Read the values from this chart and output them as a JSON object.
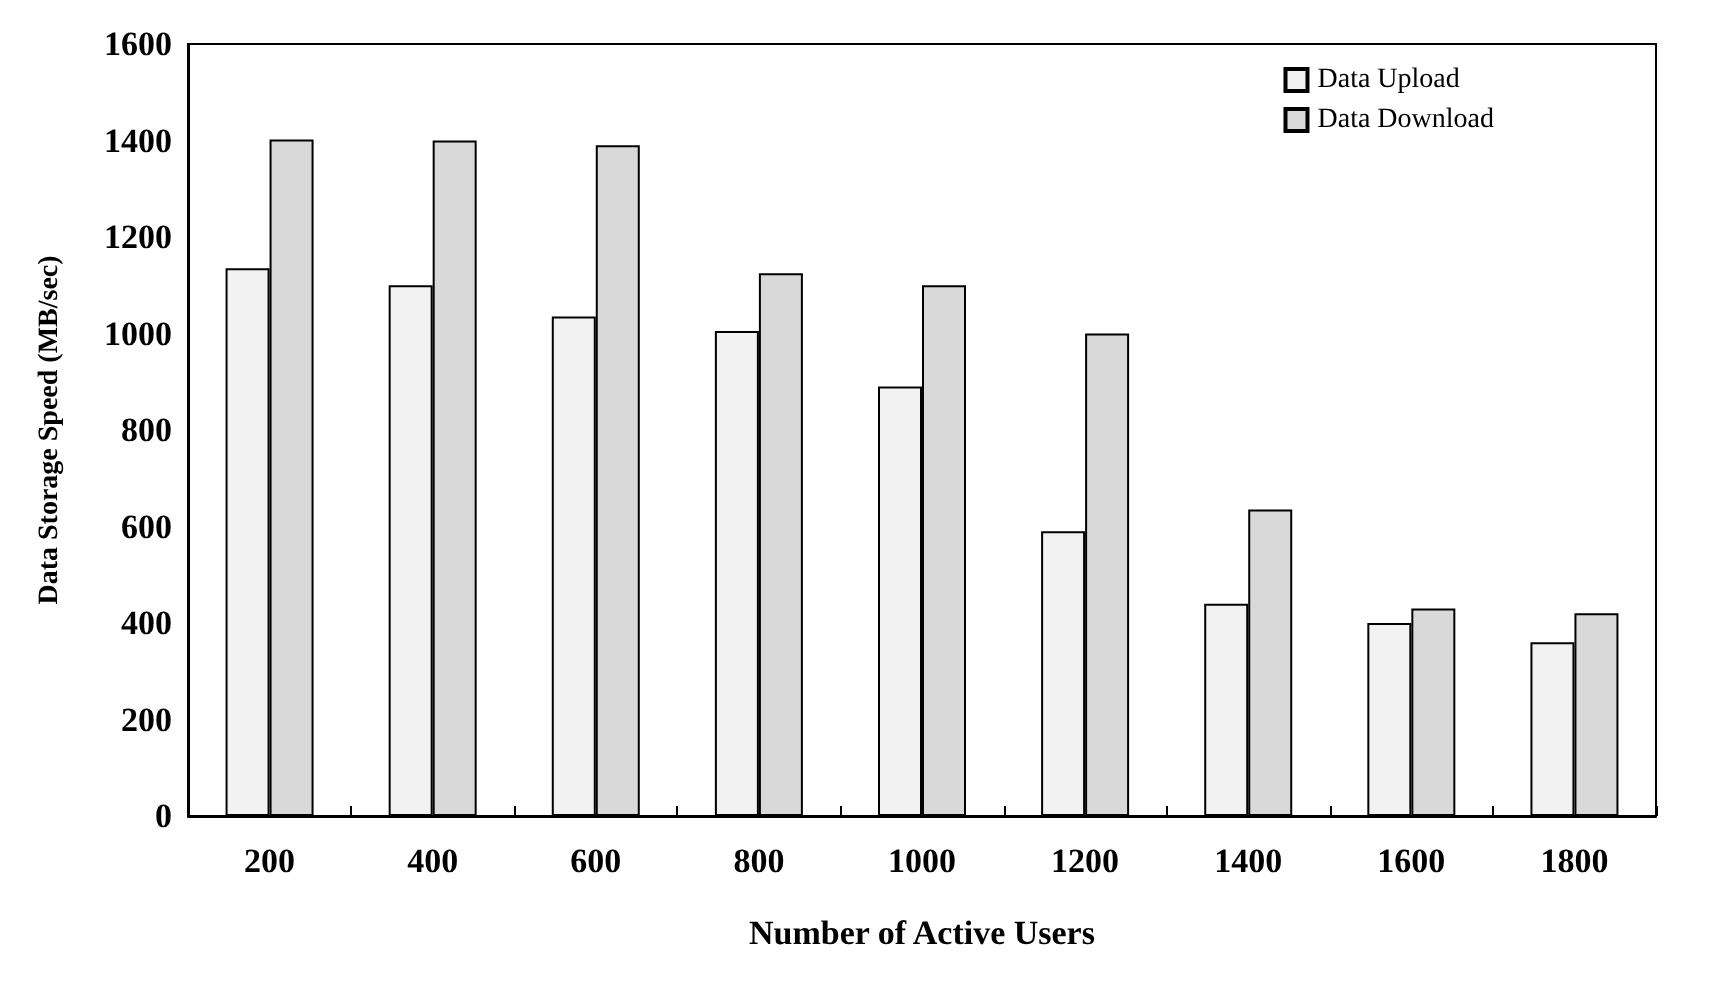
{
  "chart_data": {
    "type": "bar",
    "xlabel": "Number of Active Users",
    "ylabel": "Data Storage Speed (MB/sec)",
    "categories": [
      "200",
      "400",
      "600",
      "800",
      "1000",
      "1200",
      "1400",
      "1600",
      "1800"
    ],
    "series": [
      {
        "name": "Data Upload",
        "color": "#f2f2f2",
        "values": [
          1135,
          1100,
          1035,
          1005,
          890,
          590,
          440,
          400,
          360
        ]
      },
      {
        "name": "Data Download",
        "color": "#d9d9d9",
        "values": [
          1402,
          1400,
          1390,
          1125,
          1100,
          1000,
          635,
          430,
          420
        ]
      }
    ],
    "ylim": [
      0,
      1600
    ],
    "yticks": [
      0,
      200,
      400,
      600,
      800,
      1000,
      1200,
      1400,
      1600
    ],
    "grid": false,
    "legend": "top right"
  }
}
